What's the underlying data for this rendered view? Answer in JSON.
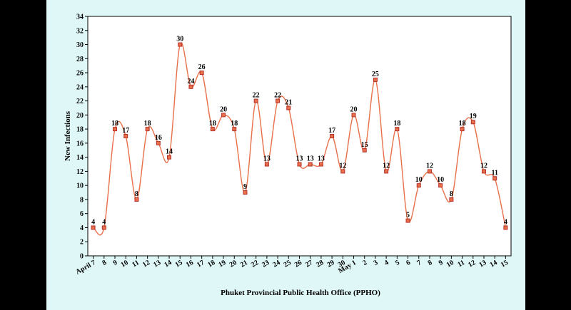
{
  "chart_data": {
    "type": "line",
    "title": "",
    "xlabel": "Phuket Provincial Public Health Office (PPHO)",
    "ylabel": "New Infections",
    "ylim": [
      0,
      34
    ],
    "yticks": [
      0,
      2,
      4,
      6,
      8,
      10,
      12,
      14,
      16,
      18,
      20,
      22,
      24,
      26,
      28,
      30,
      32,
      34
    ],
    "grid": false,
    "legend": "none",
    "x": [
      "April 7",
      "8",
      "9",
      "10",
      "11",
      "12",
      "13",
      "14",
      "15",
      "16",
      "17",
      "18",
      "19",
      "20",
      "21",
      "22",
      "23",
      "24",
      "25",
      "26",
      "27",
      "28",
      "29",
      "30",
      "May 1",
      "2",
      "3",
      "4",
      "5",
      "6",
      "7",
      "8",
      "9",
      "10",
      "11",
      "12",
      "13",
      "14",
      "15"
    ],
    "series": [
      {
        "values": [
          4,
          4,
          18,
          17,
          8,
          18,
          16,
          14,
          30,
          24,
          26,
          18,
          20,
          18,
          9,
          22,
          13,
          22,
          21,
          13,
          13,
          13,
          17,
          12,
          20,
          15,
          25,
          12,
          18,
          5,
          10,
          12,
          10,
          8,
          18,
          19,
          12,
          11,
          4
        ],
        "color": "#e8704a",
        "marker_color": "#b5312a"
      }
    ]
  }
}
